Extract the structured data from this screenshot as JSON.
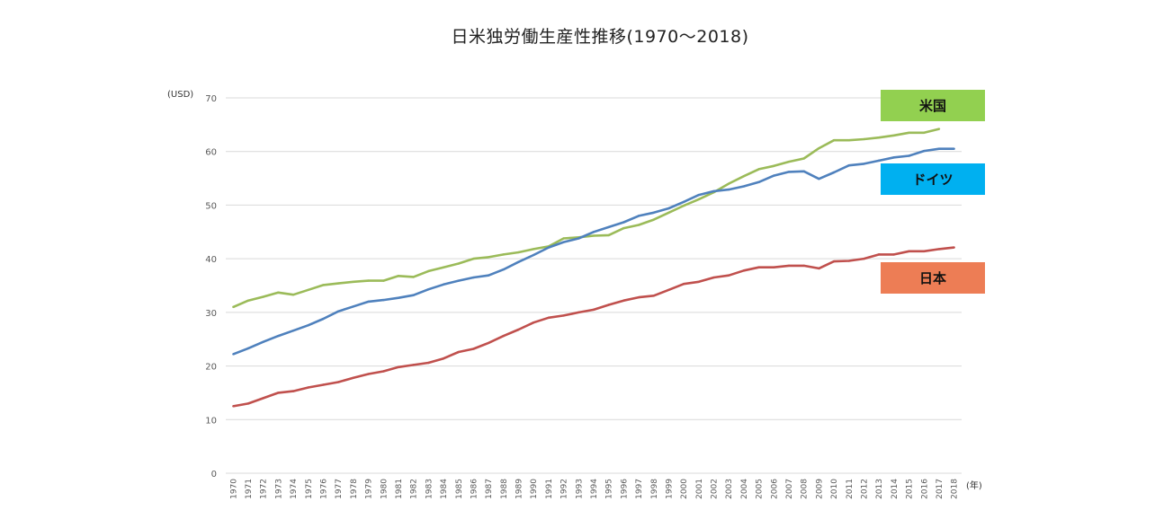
{
  "chart_data": {
    "type": "line",
    "title": "日米独労働生産性推移(1970～2018)",
    "xlabel": "(年)",
    "ylabel": "(USD)",
    "ylim": [
      0,
      70
    ],
    "yticks": [
      0,
      10,
      20,
      30,
      40,
      50,
      60,
      70
    ],
    "grid": true,
    "legend_placement": "right",
    "x": [
      1970,
      1971,
      1972,
      1973,
      1974,
      1975,
      1976,
      1977,
      1978,
      1979,
      1980,
      1981,
      1982,
      1983,
      1984,
      1985,
      1986,
      1987,
      1988,
      1989,
      1990,
      1991,
      1992,
      1993,
      1994,
      1995,
      1996,
      1997,
      1998,
      1999,
      2000,
      2001,
      2002,
      2003,
      2004,
      2005,
      2006,
      2007,
      2008,
      2009,
      2010,
      2011,
      2012,
      2013,
      2014,
      2015,
      2016,
      2017,
      2018
    ],
    "series": [
      {
        "name": "米国",
        "color": "#9bbb59",
        "label_bg": "#92d050",
        "values": [
          31.0,
          32.2,
          32.9,
          33.7,
          33.3,
          34.2,
          35.1,
          35.4,
          35.7,
          35.9,
          35.9,
          36.8,
          36.6,
          37.7,
          38.4,
          39.1,
          40.0,
          40.3,
          40.8,
          41.2,
          41.8,
          42.3,
          43.8,
          44.0,
          44.3,
          44.4,
          45.7,
          46.3,
          47.3,
          48.6,
          49.9,
          51.1,
          52.4,
          54.0,
          55.4,
          56.7,
          57.3,
          58.1,
          58.7,
          60.6,
          62.1,
          62.1,
          62.3,
          62.6,
          63.0,
          63.5,
          63.5,
          64.2,
          null
        ]
      },
      {
        "name": "ドイツ",
        "color": "#4f81bd",
        "label_bg": "#00b0f0",
        "values": [
          22.2,
          23.3,
          24.5,
          25.6,
          26.6,
          27.6,
          28.8,
          30.2,
          31.1,
          32.0,
          32.3,
          32.7,
          33.2,
          34.3,
          35.2,
          35.9,
          36.5,
          36.9,
          38.0,
          39.4,
          40.7,
          42.1,
          43.1,
          43.8,
          45.0,
          45.9,
          46.8,
          48.0,
          48.6,
          49.4,
          50.6,
          51.9,
          52.6,
          52.9,
          53.5,
          54.3,
          55.5,
          56.2,
          56.3,
          54.9,
          56.1,
          57.4,
          57.7,
          58.3,
          58.9,
          59.2,
          60.1,
          60.5,
          60.5
        ]
      },
      {
        "name": "日本",
        "color": "#c0504d",
        "label_bg": "#ed7d55",
        "values": [
          12.5,
          13.0,
          14.0,
          15.0,
          15.3,
          16.0,
          16.5,
          17.0,
          17.8,
          18.5,
          19.0,
          19.8,
          20.2,
          20.6,
          21.4,
          22.6,
          23.2,
          24.3,
          25.6,
          26.8,
          28.1,
          29.0,
          29.4,
          30.0,
          30.5,
          31.4,
          32.2,
          32.8,
          33.1,
          34.2,
          35.3,
          35.7,
          36.5,
          36.9,
          37.8,
          38.4,
          38.4,
          38.7,
          38.7,
          38.2,
          39.5,
          39.6,
          40.0,
          40.8,
          40.8,
          41.4,
          41.4,
          41.8,
          42.1
        ]
      }
    ]
  }
}
